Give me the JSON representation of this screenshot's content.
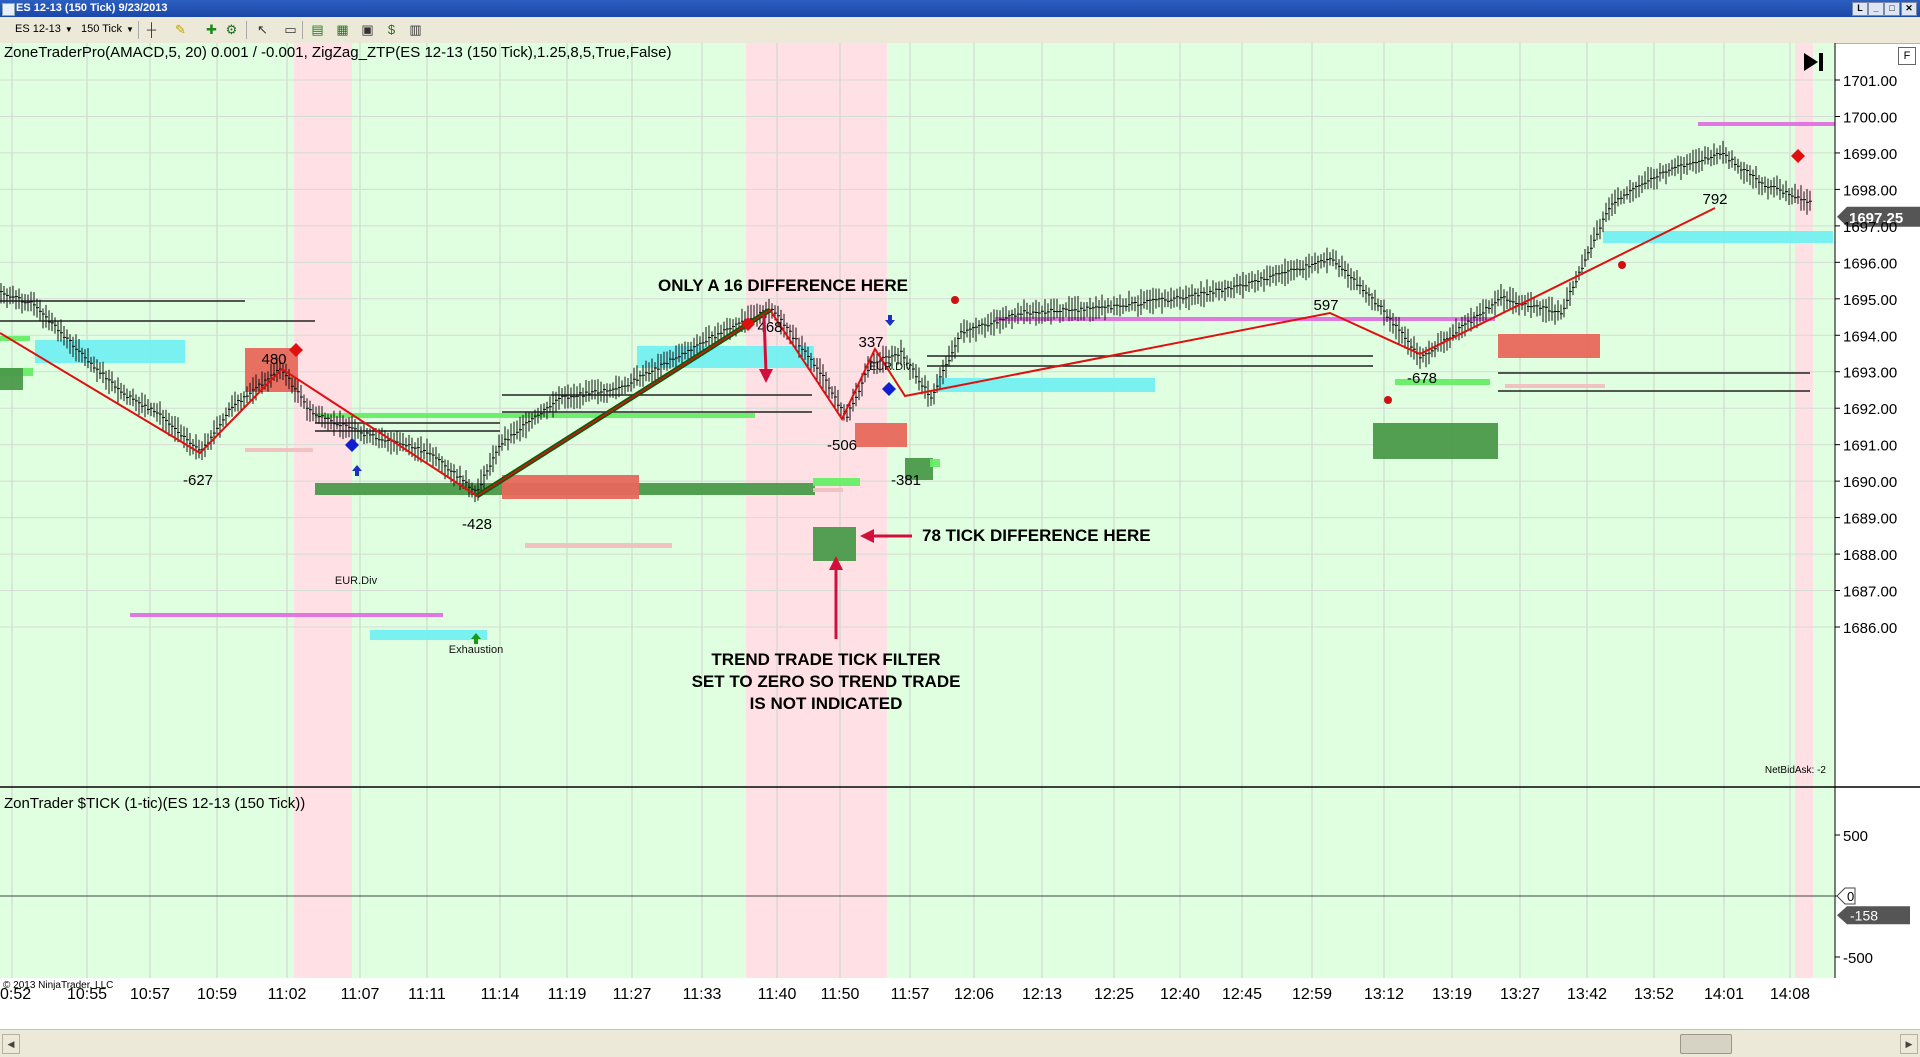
{
  "window": {
    "title": "ES 12-13 (150 Tick)  9/23/2013",
    "buttons": [
      "L",
      "_",
      "□",
      "✕"
    ]
  },
  "toolbar": {
    "instrument": "ES 12-13",
    "period": "150 Tick",
    "icons": [
      "bar-style-icon",
      "drawing-pencil-icon",
      "add-indicator-icon",
      "strategy-icon",
      "cursor-icon",
      "data-box-icon",
      "chart-trader-icon",
      "properties-icon",
      "screenshot-icon",
      "dollar-icon",
      "layout-icon"
    ]
  },
  "f_button": "F",
  "price_panel": {
    "title": "ZoneTraderPro(AMACD,5, 20) 0.001  /  -0.001, ZigZag_ZTP(ES 12-13 (150 Tick),1.25,8,5,True,False)",
    "current_price": "1697.25",
    "net_bid_ask": "NetBidAsk: -2",
    "y_ticks": [
      "1701.00",
      "1700.00",
      "1699.00",
      "1698.00",
      "1697.00",
      "1696.00",
      "1695.00",
      "1694.00",
      "1693.00",
      "1692.00",
      "1691.00",
      "1690.00",
      "1689.00",
      "1688.00",
      "1687.00",
      "1686.00"
    ],
    "zigzag_labels": [
      "-627",
      "480",
      "-428",
      "468",
      "-506",
      "337",
      "-381",
      "597",
      "-678",
      "792"
    ],
    "tags": [
      "EUR.Div",
      "EUR.Div",
      "Exhaustion"
    ],
    "annotations": [
      "ONLY A 16 DIFFERENCE HERE",
      "78 TICK DIFFERENCE HERE",
      "TREND TRADE TICK FILTER",
      "SET TO ZERO SO TREND TRADE",
      "IS NOT INDICATED"
    ]
  },
  "tick_panel": {
    "title": "ZonTrader $TICK (1-tic)(ES 12-13 (150 Tick))",
    "y_ticks": [
      "500",
      "0",
      "-500"
    ],
    "current_value": "-158",
    "zero_marker": "0"
  },
  "x_axis": {
    "labels": [
      "0:52",
      "10:55",
      "10:57",
      "10:59",
      "11:02",
      "11:07",
      "11:11",
      "11:14",
      "11:19",
      "11:27",
      "11:33",
      "11:40",
      "11:50",
      "11:57",
      "12:06",
      "12:13",
      "12:25",
      "12:40",
      "12:45",
      "12:59",
      "13:12",
      "13:19",
      "13:27",
      "13:42",
      "13:52",
      "14:01",
      "14:08"
    ]
  },
  "copyright": "© 2013 NinjaTrader, LLC",
  "colors": {
    "bull_bg": "#e0ffe0",
    "bear_bg": "#ffe0e4",
    "zigzag": "#e01010",
    "trend_line": "#0a5c0a",
    "tick_line": "#2222aa",
    "annotation_arrow": "#d0103a",
    "cyan_zone": "#73f0f0",
    "magenta_line": "#e070e0"
  }
}
